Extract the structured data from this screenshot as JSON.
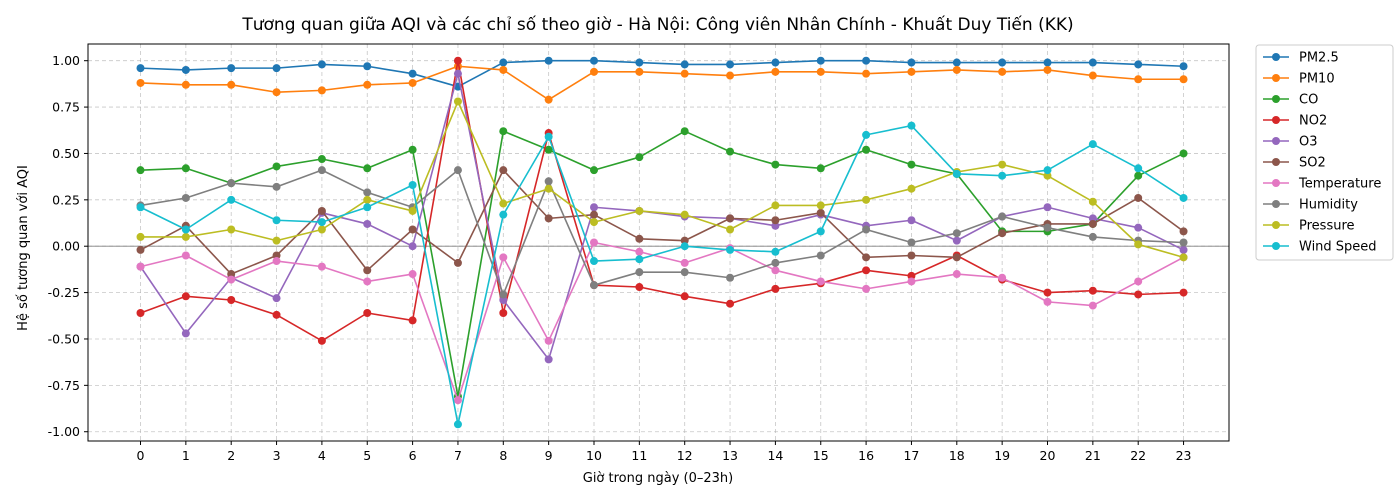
{
  "chart_data": {
    "type": "line",
    "title": "Tương quan giữa AQI và các chỉ số theo giờ - Hà Nội: Công viên Nhân Chính - Khuất Duy Tiến (KK)",
    "xlabel": "Giờ trong ngày (0–23h)",
    "ylabel": "Hệ số tương quan với AQI",
    "x": [
      "0",
      "1",
      "2",
      "3",
      "4",
      "5",
      "6",
      "7",
      "8",
      "9",
      "10",
      "11",
      "12",
      "13",
      "14",
      "15",
      "16",
      "17",
      "18",
      "19",
      "20",
      "21",
      "22",
      "23"
    ],
    "ylim": [
      -1.05,
      1.09
    ],
    "yticks": [
      "-1.00",
      "-0.75",
      "-0.50",
      "-0.25",
      "0.00",
      "0.25",
      "0.50",
      "0.75",
      "1.00"
    ],
    "grid": true,
    "zero_line": true,
    "legend_position": "outside right, top",
    "series": [
      {
        "name": "PM2.5",
        "color": "#1f77b4",
        "values": [
          0.96,
          0.95,
          0.96,
          0.96,
          0.98,
          0.97,
          0.93,
          0.86,
          0.99,
          1.0,
          1.0,
          0.99,
          0.98,
          0.98,
          0.99,
          1.0,
          1.0,
          0.99,
          0.99,
          0.99,
          0.99,
          0.99,
          0.98,
          0.97
        ]
      },
      {
        "name": "PM10",
        "color": "#ff7f0e",
        "values": [
          0.88,
          0.87,
          0.87,
          0.83,
          0.84,
          0.87,
          0.88,
          0.97,
          0.95,
          0.79,
          0.94,
          0.94,
          0.93,
          0.92,
          0.94,
          0.94,
          0.93,
          0.94,
          0.95,
          0.94,
          0.95,
          0.92,
          0.9,
          0.9
        ]
      },
      {
        "name": "CO",
        "color": "#2ca02c",
        "values": [
          0.41,
          0.42,
          0.34,
          0.43,
          0.47,
          0.42,
          0.52,
          -0.81,
          0.62,
          0.52,
          0.41,
          0.48,
          0.62,
          0.51,
          0.44,
          0.42,
          0.52,
          0.44,
          0.39,
          0.08,
          0.08,
          0.12,
          0.38,
          0.5
        ]
      },
      {
        "name": "NO2",
        "color": "#d62728",
        "values": [
          -0.36,
          -0.27,
          -0.29,
          -0.37,
          -0.51,
          -0.36,
          -0.4,
          1.0,
          -0.36,
          0.61,
          -0.21,
          -0.22,
          -0.27,
          -0.31,
          -0.23,
          -0.2,
          -0.13,
          -0.16,
          -0.05,
          -0.18,
          -0.25,
          -0.24,
          -0.26,
          -0.25
        ]
      },
      {
        "name": "O3",
        "color": "#9467bd",
        "values": [
          -0.11,
          -0.47,
          -0.17,
          -0.28,
          0.18,
          0.12,
          0.0,
          0.93,
          -0.29,
          -0.61,
          0.21,
          0.19,
          0.16,
          0.15,
          0.11,
          0.17,
          0.11,
          0.14,
          0.03,
          0.16,
          0.21,
          0.15,
          0.1,
          -0.02
        ]
      },
      {
        "name": "SO2",
        "color": "#8c564b",
        "values": [
          -0.02,
          0.11,
          -0.15,
          -0.05,
          0.19,
          -0.13,
          0.09,
          -0.09,
          0.41,
          0.15,
          0.17,
          0.04,
          0.03,
          0.15,
          0.14,
          0.18,
          -0.06,
          -0.05,
          -0.06,
          0.07,
          0.12,
          0.12,
          0.26,
          0.08
        ]
      },
      {
        "name": "Temperature",
        "color": "#e377c2",
        "values": [
          -0.11,
          -0.05,
          -0.18,
          -0.08,
          -0.11,
          -0.19,
          -0.15,
          -0.83,
          -0.06,
          -0.51,
          0.02,
          -0.03,
          -0.09,
          -0.01,
          -0.13,
          -0.19,
          -0.23,
          -0.19,
          -0.15,
          -0.17,
          -0.3,
          -0.32,
          -0.19,
          -0.06
        ]
      },
      {
        "name": "Humidity",
        "color": "#7f7f7f",
        "values": [
          0.22,
          0.26,
          0.34,
          0.32,
          0.41,
          0.29,
          0.21,
          0.41,
          -0.26,
          0.35,
          -0.21,
          -0.14,
          -0.14,
          -0.17,
          -0.09,
          -0.05,
          0.09,
          0.02,
          0.07,
          0.16,
          0.1,
          0.05,
          0.03,
          0.02
        ]
      },
      {
        "name": "Pressure",
        "color": "#bcbd22",
        "values": [
          0.05,
          0.05,
          0.09,
          0.03,
          0.09,
          0.25,
          0.19,
          0.78,
          0.23,
          0.31,
          0.13,
          0.19,
          0.17,
          0.09,
          0.22,
          0.22,
          0.25,
          0.31,
          0.4,
          0.44,
          0.38,
          0.24,
          0.01,
          -0.06
        ]
      },
      {
        "name": "Wind Speed",
        "color": "#17becf",
        "values": [
          0.21,
          0.09,
          0.25,
          0.14,
          0.13,
          0.21,
          0.33,
          -0.96,
          0.17,
          0.59,
          -0.08,
          -0.07,
          0.0,
          -0.02,
          -0.03,
          0.08,
          0.6,
          0.65,
          0.39,
          0.38,
          0.41,
          0.55,
          0.42,
          0.26
        ]
      }
    ]
  }
}
